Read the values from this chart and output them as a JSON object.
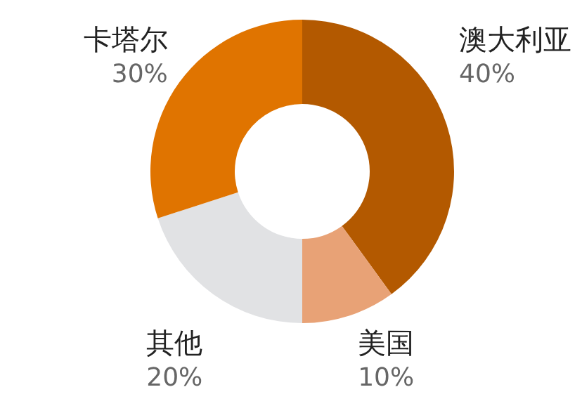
{
  "chart_data": {
    "type": "donut",
    "categories": [
      "澳大利亚",
      "美国",
      "其他",
      "卡塔尔"
    ],
    "values": [
      40,
      10,
      20,
      30
    ],
    "value_labels": [
      "40%",
      "10%",
      "20%",
      "30%"
    ],
    "colors": [
      "#b35900",
      "#e8a276",
      "#e1e2e4",
      "#e07400"
    ],
    "legend": false
  }
}
